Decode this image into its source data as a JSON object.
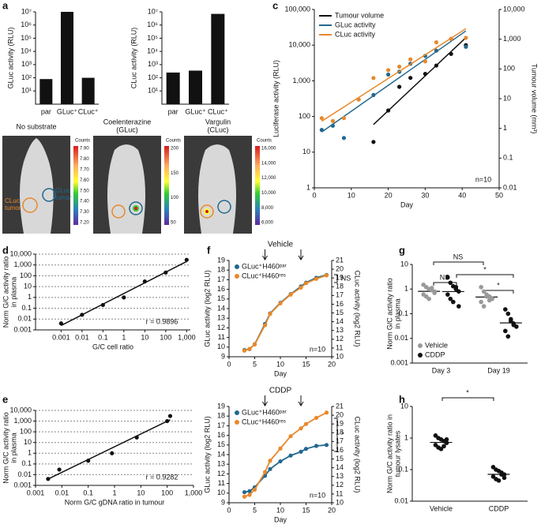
{
  "chart_data": [
    {
      "type": "bar",
      "panel_label": "a",
      "ylabel": "GLuc activity (RLU)",
      "categories": [
        "par",
        "GLuc⁺",
        "CLuc⁺"
      ],
      "values": [
        80,
        10000000,
        100
      ],
      "color": "#111111",
      "ylog": true,
      "ylim": [
        1,
        10000000
      ],
      "yticks": [
        {
          "value": 10,
          "label": "10¹"
        },
        {
          "value": 100,
          "label": "10²"
        },
        {
          "value": 1000,
          "label": "10³"
        },
        {
          "value": 10000,
          "label": "10⁴"
        },
        {
          "value": 100000,
          "label": "10⁵"
        },
        {
          "value": 1000000,
          "label": "10⁶"
        },
        {
          "value": 10000000,
          "label": "10⁷"
        }
      ]
    },
    {
      "type": "bar",
      "ylabel": "CLuc activity (RLU)",
      "categories": [
        "par",
        "GLuc⁺",
        "CLuc⁺"
      ],
      "values": [
        250,
        350,
        7000000
      ],
      "color": "#111111",
      "ylog": true,
      "ylim": [
        1,
        10000000
      ],
      "yticks": [
        {
          "value": 10,
          "label": "10¹"
        },
        {
          "value": 100,
          "label": "10²"
        },
        {
          "value": 1000,
          "label": "10³"
        },
        {
          "value": 10000,
          "label": "10⁴"
        },
        {
          "value": 100000,
          "label": "10⁵"
        },
        {
          "value": 1000000,
          "label": "10⁶"
        },
        {
          "value": 10000000,
          "label": "10⁷"
        }
      ]
    },
    {
      "type": "line",
      "panel_label": "c",
      "xlabel": "Day",
      "ylabel": "Luciferase activity (RLU)",
      "y2label": "Tumour volume (mm³)",
      "trendline": true,
      "legend": "upper left",
      "annotations": [
        "n=10"
      ],
      "xlim": [
        0,
        50
      ],
      "xticks": [
        0,
        10,
        20,
        30,
        40,
        50
      ],
      "ylog": true,
      "ylim": [
        1,
        100000
      ],
      "yticks": [
        1,
        10,
        100,
        {
          "value": 1000,
          "label": "1,000"
        },
        {
          "value": 10000,
          "label": "10,000"
        },
        {
          "value": 100000,
          "label": "100,000"
        }
      ],
      "y2log": true,
      "y2lim": [
        0.01,
        10000
      ],
      "y2ticks": [
        0.01,
        0.1,
        1,
        10,
        100,
        {
          "value": 1000,
          "label": "1,000"
        },
        {
          "value": 10000,
          "label": "10,000"
        }
      ],
      "series": [
        {
          "name": "Tumour volume",
          "color": "#111111",
          "axis": "y2",
          "x": [
            16,
            20,
            23,
            26,
            30,
            33,
            37,
            41
          ],
          "values": [
            0.35,
            4,
            25,
            50,
            68,
            130,
            320,
            630
          ]
        },
        {
          "name": "GLuc activity",
          "color": "#22688f",
          "x": [
            2,
            5,
            8,
            12,
            16,
            20,
            23,
            26,
            30,
            33,
            37,
            41
          ],
          "values": [
            42,
            55,
            25,
            300,
            400,
            1500,
            1800,
            3000,
            5000,
            7000,
            15000,
            9000
          ]
        },
        {
          "name": "CLuc activity",
          "color": "#e8892b",
          "x": [
            2,
            5,
            8,
            12,
            16,
            20,
            23,
            26,
            30,
            33,
            37,
            41
          ],
          "values": [
            90,
            75,
            90,
            300,
            1200,
            2000,
            2500,
            4000,
            3500,
            12000,
            15000,
            16000
          ]
        }
      ]
    },
    {
      "type": "scatter",
      "panel_label": "d",
      "xlabel": "G/C cell ratio",
      "ylabel": [
        "Norm G/C activity ratio",
        "in plasma"
      ],
      "annotations": [
        "r = 0.9896"
      ],
      "grid": true,
      "color": "#111111",
      "xlog": true,
      "xlim": [
        6e-05,
        1500
      ],
      "xticks": [
        0.001,
        0.01,
        0.1,
        1,
        10,
        100,
        {
          "value": 1000,
          "label": "1,000"
        }
      ],
      "ylog": true,
      "ylim": [
        0.001,
        10000
      ],
      "yticks": [
        0.001,
        0.01,
        0.1,
        1,
        10,
        100,
        {
          "value": 1000,
          "label": "1,000"
        },
        {
          "value": 10000,
          "label": "10,000"
        }
      ],
      "x": [
        0.001,
        0.01,
        0.1,
        1,
        10,
        100,
        1000
      ],
      "y": [
        0.004,
        0.025,
        0.2,
        1,
        30,
        200,
        3000
      ]
    },
    {
      "type": "scatter",
      "panel_label": "e",
      "xlabel": "Norm G/C gDNA ratio in tumour",
      "ylabel": [
        "Norm G/C activity ratio",
        "in plasma"
      ],
      "annotations": [
        "r = 0.9282"
      ],
      "grid": true,
      "color": "#111111",
      "xlog": true,
      "xlim": [
        0.001,
        1000
      ],
      "xticks": [
        0.001,
        0.01,
        0.1,
        1,
        10,
        100,
        {
          "value": 1000,
          "label": "1,000"
        }
      ],
      "ylog": true,
      "ylim": [
        0.001,
        10000
      ],
      "yticks": [
        0.001,
        0.01,
        0.1,
        1,
        10,
        100,
        {
          "value": 1000,
          "label": "1,000"
        },
        {
          "value": 10000,
          "label": "10,000"
        }
      ],
      "x": [
        0.003,
        0.008,
        0.1,
        0.8,
        7,
        100,
        130
      ],
      "y": [
        0.004,
        0.03,
        0.2,
        1,
        30,
        1000,
        3000
      ]
    },
    {
      "type": "line",
      "panel_label": "f",
      "title": "Vehicle",
      "arrows": [
        7,
        14
      ],
      "xlabel": "Day",
      "ylabel": "GLuc activity (log2 RLU)",
      "y2label": "CLuc activity (log2 RLU)",
      "legend": "upper left",
      "annotations": [
        "NS",
        "n=10"
      ],
      "xlim": [
        0,
        20
      ],
      "xticks": [
        0,
        5,
        10,
        15,
        20
      ],
      "ylim": [
        9,
        19
      ],
      "yticks": [
        9,
        10,
        11,
        12,
        13,
        14,
        15,
        16,
        17,
        18,
        19
      ],
      "y2lim": [
        10,
        21
      ],
      "y2ticks": [
        10,
        11,
        12,
        13,
        14,
        15,
        16,
        17,
        18,
        19,
        20,
        21
      ],
      "x": [
        3,
        4,
        5,
        7,
        8,
        10,
        12,
        14,
        15,
        17,
        19
      ],
      "series": [
        {
          "name": "GLuc⁺H460ᵖᵃʳ",
          "color": "#22688f",
          "values": [
            9.7,
            9.8,
            10.3,
            12.4,
            13.5,
            14.6,
            15.5,
            16.3,
            16.7,
            17.2,
            17.5
          ]
        },
        {
          "name": "CLuc⁺H460ʳᵉˢ",
          "color": "#e8892b",
          "axis": "y2",
          "values": [
            10.7,
            10.9,
            11.4,
            13.6,
            14.9,
            16.1,
            17.1,
            17.9,
            18.4,
            18.9,
            19.3
          ]
        }
      ]
    },
    {
      "type": "line",
      "title": "CDDP",
      "arrows": [
        7,
        14
      ],
      "xlabel": "Day",
      "ylabel": "GLuc activity (log2 RLU)",
      "y2label": "CLuc activity (log2 RLU)",
      "legend": "upper left",
      "annotations": [
        "*",
        "n=10"
      ],
      "xlim": [
        0,
        20
      ],
      "xticks": [
        0,
        5,
        10,
        15,
        20
      ],
      "ylim": [
        9,
        19
      ],
      "yticks": [
        9,
        10,
        11,
        12,
        13,
        14,
        15,
        16,
        17,
        18,
        19
      ],
      "y2lim": [
        10,
        21
      ],
      "y2ticks": [
        10,
        11,
        12,
        13,
        14,
        15,
        16,
        17,
        18,
        19,
        20,
        21
      ],
      "x": [
        3,
        4,
        5,
        7,
        8,
        10,
        12,
        14,
        15,
        17,
        19
      ],
      "series": [
        {
          "name": "GLuc⁺H460ᵖᵃʳ",
          "color": "#22688f",
          "values": [
            10.1,
            10.2,
            10.6,
            11.8,
            12.5,
            13.3,
            13.9,
            14.3,
            14.6,
            14.9,
            15.0
          ]
        },
        {
          "name": "CLuc⁺H460ʳᵉˢ",
          "color": "#e8892b",
          "axis": "y2",
          "values": [
            10.7,
            10.9,
            11.5,
            13.5,
            14.8,
            16.2,
            17.6,
            18.5,
            19.0,
            19.7,
            20.3
          ]
        }
      ]
    },
    {
      "type": "dot",
      "panel_label": "g",
      "ylabel": [
        "Norm G/C activity ratio",
        "in plasma"
      ],
      "legend": "lower left",
      "annotations": [
        "NS",
        "NS",
        "*",
        "*"
      ],
      "categories": [
        "Day 3",
        "Day 19"
      ],
      "ylog": true,
      "ylim": [
        0.001,
        10
      ],
      "yticks": [
        0.001,
        0.01,
        0.1,
        1,
        10
      ],
      "series": [
        {
          "name": "Vehicle",
          "color": "#9a9a9a",
          "values": [
            [
              1.5,
              1.2,
              1.0,
              0.9,
              0.8,
              0.6,
              0.5,
              0.4,
              1.1,
              0.7
            ],
            [
              1.2,
              0.8,
              0.6,
              0.5,
              0.4,
              0.3,
              0.2,
              0.5,
              0.35
            ]
          ]
        },
        {
          "name": "CDDP",
          "color": "#111111",
          "values": [
            [
              3,
              1.8,
              1.3,
              1.0,
              0.8,
              0.6,
              0.4,
              0.3,
              1.2,
              0.2
            ],
            [
              0.15,
              0.1,
              0.06,
              0.04,
              0.03,
              0.02,
              0.012,
              0.05,
              0.035
            ]
          ]
        }
      ]
    },
    {
      "type": "dot",
      "panel_label": "h",
      "ylabel": [
        "Norm G/C activity ratio in",
        "tumour lysates"
      ],
      "annotations": [
        "*"
      ],
      "categories": [
        "Vehicle",
        "CDDP"
      ],
      "ylog": true,
      "ylim": [
        0.01,
        10
      ],
      "yticks": [
        0.01,
        0.1,
        1,
        10
      ],
      "series": [
        {
          "color": "#111111",
          "values": [
            [
              1.2,
              1.0,
              0.9,
              0.8,
              0.7,
              0.6,
              0.5,
              0.45,
              0.55,
              0.9
            ],
            [
              0.12,
              0.1,
              0.09,
              0.08,
              0.07,
              0.06,
              0.05,
              0.045,
              0.07,
              0.055
            ]
          ]
        }
      ]
    }
  ],
  "panel_b": {
    "label": "b",
    "images": [
      {
        "title": [
          "No substrate"
        ],
        "colorbar_title": "Counts",
        "colorbar_ticks": [
          "7.90",
          "7.80",
          "7.70",
          "7.60",
          "7.50",
          "7.40",
          "7.30",
          "7.20"
        ]
      },
      {
        "title": [
          "Coelenterazine",
          "(GLuc)"
        ],
        "colorbar_title": "Counts",
        "colorbar_ticks": [
          "200",
          "150",
          "100",
          "50"
        ]
      },
      {
        "title": [
          "Vargulin",
          "(CLuc)"
        ],
        "colorbar_title": "Counts",
        "colorbar_ticks": [
          "16,000",
          "14,000",
          "12,000",
          "10,000",
          "8,000",
          "6,000"
        ]
      }
    ],
    "annotations": [
      [
        "CLuc",
        "tumor"
      ],
      [
        "GLuc",
        "tumor"
      ]
    ]
  }
}
